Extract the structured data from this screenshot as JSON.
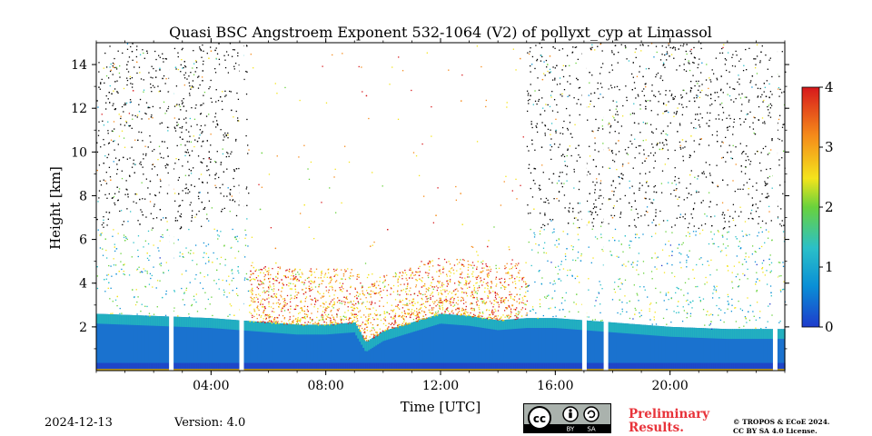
{
  "chart_data": {
    "type": "heatmap",
    "title": "Quasi BSC Angstroem Exponent 532-1064 (V2) of pollyxt_cyp at Limassol",
    "xlabel": "Time [UTC]",
    "ylabel": "Height [km]",
    "xlim_hours": [
      0,
      24
    ],
    "ylim_km": [
      0,
      15
    ],
    "x_ticks": [
      "04:00",
      "08:00",
      "12:00",
      "16:00",
      "20:00"
    ],
    "x_tick_hours": [
      4,
      8,
      12,
      16,
      20
    ],
    "y_ticks": [
      2,
      4,
      6,
      8,
      10,
      12,
      14
    ],
    "colorbar": {
      "range": [
        0,
        4
      ],
      "ticks": [
        0,
        1,
        2,
        3,
        4
      ],
      "colormap": [
        "#1e3bcc",
        "#0a8fd6",
        "#2bc0c8",
        "#69d23c",
        "#f4e41c",
        "#f58a1a",
        "#d7191c"
      ]
    },
    "data_gaps_hours": [
      2.6,
      5.05,
      17.0,
      17.75,
      23.65
    ],
    "boundary_layer_top_km": [
      [
        0,
        2.6
      ],
      [
        2,
        2.5
      ],
      [
        4,
        2.4
      ],
      [
        5,
        2.3
      ],
      [
        6,
        2.2
      ],
      [
        7,
        2.1
      ],
      [
        8,
        2.1
      ],
      [
        9,
        2.2
      ],
      [
        9.4,
        1.3
      ],
      [
        10,
        1.8
      ],
      [
        11,
        2.2
      ],
      [
        12,
        2.6
      ],
      [
        13,
        2.5
      ],
      [
        14,
        2.3
      ],
      [
        15,
        2.4
      ],
      [
        16,
        2.4
      ],
      [
        17,
        2.3
      ],
      [
        18,
        2.2
      ],
      [
        20,
        2.0
      ],
      [
        22,
        1.9
      ],
      [
        24,
        1.9
      ]
    ]
  },
  "footer": {
    "date": "2024-12-13",
    "version": "Version: 4.0",
    "preliminary_line1": "Preliminary",
    "preliminary_line2": "Results.",
    "license_line1": "© TROPOS & ECoE 2024.",
    "license_line2": "CC BY SA 4.0 License.",
    "badge_by": "BY",
    "badge_sa": "SA"
  }
}
